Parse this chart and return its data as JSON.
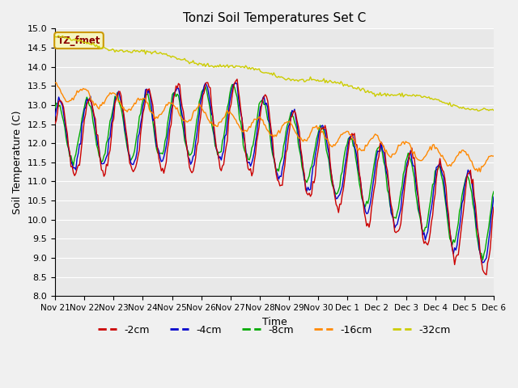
{
  "title": "Tonzi Soil Temperatures Set C",
  "xlabel": "Time",
  "ylabel": "Soil Temperature (C)",
  "ylim": [
    8.0,
    15.0
  ],
  "yticks": [
    8.0,
    8.5,
    9.0,
    9.5,
    10.0,
    10.5,
    11.0,
    11.5,
    12.0,
    12.5,
    13.0,
    13.5,
    14.0,
    14.5,
    15.0
  ],
  "xtick_labels": [
    "Nov 21",
    "Nov 22",
    "Nov 23",
    "Nov 24",
    "Nov 25",
    "Nov 26",
    "Nov 27",
    "Nov 28",
    "Nov 29",
    "Nov 30",
    "Dec 1",
    "Dec 2",
    "Dec 3",
    "Dec 4",
    "Dec 5",
    "Dec 6"
  ],
  "colors": {
    "-2cm": "#cc0000",
    "-4cm": "#0000cc",
    "-8cm": "#00aa00",
    "-16cm": "#ff8800",
    "-32cm": "#cccc00"
  },
  "annotation": "TZ_fmet",
  "n_days": 15,
  "n_points": 360
}
